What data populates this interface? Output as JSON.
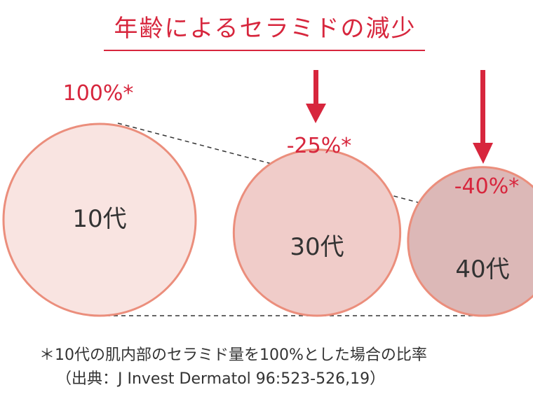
{
  "colors": {
    "accent": "#d7263d",
    "circle_stroke": "#eb8e7c",
    "circle_10s": "#f9e4e1",
    "circle_30s": "#f0ccc9",
    "circle_40s": "#dcb8b7",
    "dashed_line": "#333333",
    "text": "#333333"
  },
  "chart_data": {
    "type": "bubble",
    "title": "年齢によるセラミドの減少",
    "unit": "%",
    "categories": [
      "10代",
      "30代",
      "40代"
    ],
    "values": [
      100,
      75,
      60
    ],
    "change_labels": [
      "100%*",
      "-25%*",
      "-40%*"
    ],
    "footnote": [
      "＊10代の肌内部のセラミド量を100%とした場合の比率",
      "（出典：J Invest Dermatol 96:523-526,19）"
    ]
  }
}
